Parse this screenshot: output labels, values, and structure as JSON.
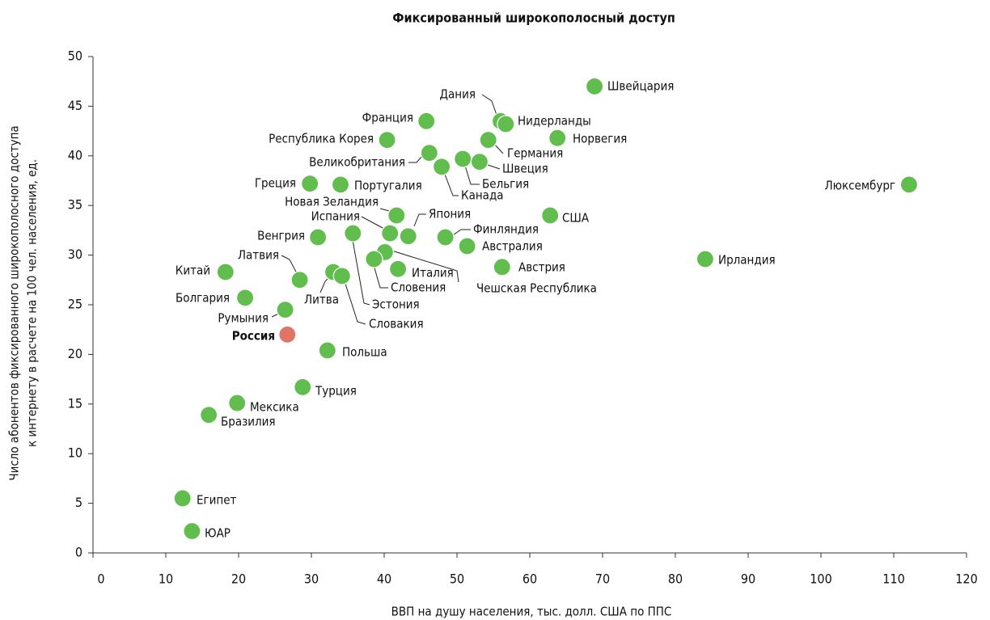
{
  "chart_data": {
    "type": "scatter",
    "title": "Фиксированный широкополосный доступ",
    "xlabel": "ВВП на душу населения, тыс. долл. США по ППС",
    "ylabel": [
      "Число абонентов фиксированного широкополосного  доступа",
      "к интернету в расчете на 100 чел. населения, ед."
    ],
    "xlim": [
      0,
      120
    ],
    "xticks": [
      0,
      10,
      20,
      30,
      40,
      50,
      60,
      70,
      80,
      90,
      100,
      110,
      120
    ],
    "ylim": [
      0,
      50
    ],
    "yticks": [
      0,
      5,
      10,
      15,
      20,
      25,
      30,
      35,
      40,
      45,
      50
    ],
    "color": "#62bd4f",
    "points": [
      {
        "label": "Швейцария",
        "x": 68.9,
        "y": 47.0
      },
      {
        "label": "Дания",
        "x": 56.0,
        "y": 43.5
      },
      {
        "label": "Нидерланды",
        "x": 56.7,
        "y": 43.2
      },
      {
        "label": "Франция",
        "x": 45.8,
        "y": 43.5
      },
      {
        "label": "Республика Корея",
        "x": 40.4,
        "y": 41.6
      },
      {
        "label": "Германия",
        "x": 54.3,
        "y": 41.6
      },
      {
        "label": "Норвегия",
        "x": 63.8,
        "y": 41.8
      },
      {
        "label": "Великобритания",
        "x": 46.2,
        "y": 40.3
      },
      {
        "label": "Бельгия",
        "x": 50.8,
        "y": 39.7
      },
      {
        "label": "Швеция",
        "x": 53.1,
        "y": 39.4
      },
      {
        "label": "Канада",
        "x": 47.9,
        "y": 38.9
      },
      {
        "label": "Греция",
        "x": 29.8,
        "y": 37.2
      },
      {
        "label": "Португалия",
        "x": 34.0,
        "y": 37.1
      },
      {
        "label": "Люксембург",
        "x": 112.1,
        "y": 37.1
      },
      {
        "label": "Ирландия",
        "x": 84.1,
        "y": 29.6
      },
      {
        "label": "США",
        "x": 62.8,
        "y": 34.0
      },
      {
        "label": "Новая Зеландия",
        "x": 41.7,
        "y": 34.0
      },
      {
        "label": "Испания",
        "x": 40.8,
        "y": 32.2
      },
      {
        "label": "Япония",
        "x": 43.3,
        "y": 31.9
      },
      {
        "label": "Финляндия",
        "x": 48.4,
        "y": 31.8
      },
      {
        "label": "Австралия",
        "x": 51.4,
        "y": 30.9
      },
      {
        "label": "Венгрия",
        "x": 30.9,
        "y": 31.8
      },
      {
        "label": "Эстония",
        "x": 35.7,
        "y": 32.2
      },
      {
        "label": "Чешская Республика",
        "x": 40.1,
        "y": 30.3
      },
      {
        "label": "Словения",
        "x": 38.6,
        "y": 29.6
      },
      {
        "label": "Италия",
        "x": 41.9,
        "y": 28.6
      },
      {
        "label": "Австрия",
        "x": 56.2,
        "y": 28.8
      },
      {
        "label": "Китай",
        "x": 18.2,
        "y": 28.3
      },
      {
        "label": "Латвия",
        "x": 28.4,
        "y": 27.5
      },
      {
        "label": "Литва",
        "x": 33.0,
        "y": 28.3
      },
      {
        "label": "Словакия",
        "x": 34.2,
        "y": 27.9
      },
      {
        "label": "Болгария",
        "x": 20.9,
        "y": 25.7
      },
      {
        "label": "Румыния",
        "x": 26.4,
        "y": 24.5
      },
      {
        "label": "Россия",
        "x": 26.7,
        "y": 22.0,
        "color": "#e07466",
        "bold": true
      },
      {
        "label": "Польша",
        "x": 32.2,
        "y": 20.4
      },
      {
        "label": "Турция",
        "x": 28.8,
        "y": 16.7
      },
      {
        "label": "Мексика",
        "x": 19.8,
        "y": 15.1
      },
      {
        "label": "Бразилия",
        "x": 15.9,
        "y": 13.9
      },
      {
        "label": "Египет",
        "x": 12.3,
        "y": 5.5
      },
      {
        "label": "ЮАР",
        "x": 13.6,
        "y": 2.2
      }
    ]
  }
}
